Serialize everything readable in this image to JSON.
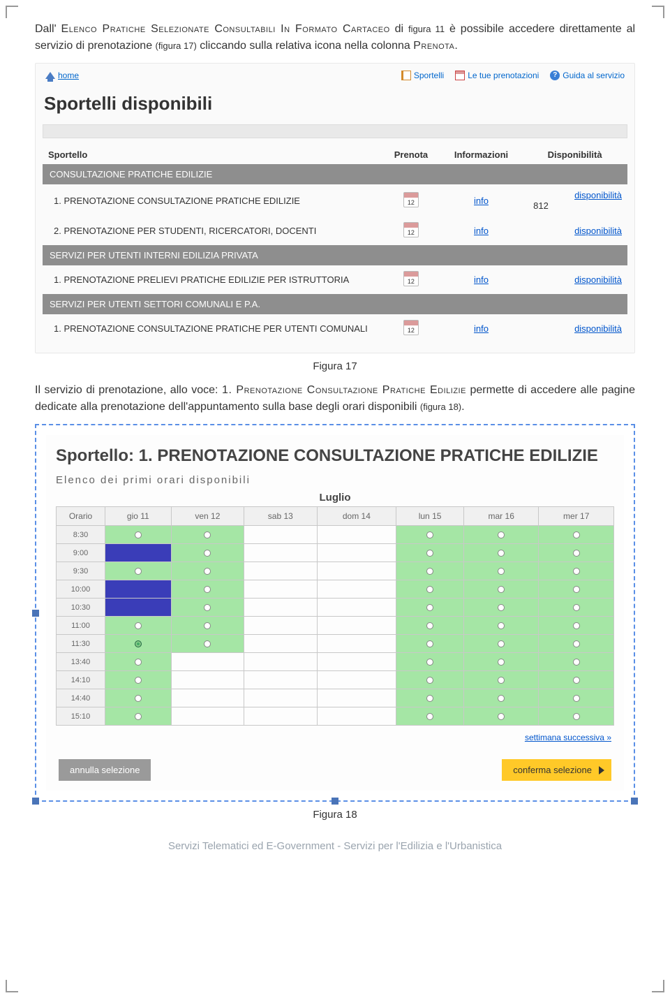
{
  "para1": {
    "pre": "Dall' ",
    "sc1": "Elenco Pratiche Selezionate Consultabili In Formato Cartaceo",
    "mid1": " di ",
    "f11": "figura 11",
    "mid2": " è possibile accedere direttamente al servizio di prenotazione ",
    "f17": "(figura 17)",
    "mid3": " cliccando sulla relativa icona nella colonna ",
    "sc2": "Prenota",
    "end": "."
  },
  "panel1": {
    "home": "home",
    "topLinks": [
      "Sportelli",
      "Le tue prenotazioni",
      "Guida al servizio"
    ],
    "title": "Sportelli disponibili",
    "headers": [
      "Sportello",
      "Prenota",
      "Informazioni",
      "Disponibilità"
    ],
    "sections": [
      {
        "name": "CONSULTAZIONE PRATICHE EDILIZIE",
        "rows": [
          {
            "label": "1. PRENOTAZIONE CONSULTAZIONE PRATICHE EDILIZIE",
            "info": "info",
            "dispo": "disponibilità",
            "extra": "812"
          },
          {
            "label": "2. PRENOTAZIONE PER STUDENTI, RICERCATORI, DOCENTI",
            "info": "info",
            "dispo": "disponibilità",
            "extra": ""
          }
        ]
      },
      {
        "name": "SERVIZI PER UTENTI INTERNI EDILIZIA PRIVATA",
        "rows": [
          {
            "label": "1. PRENOTAZIONE PRELIEVI PRATICHE EDILIZIE PER ISTRUTTORIA",
            "info": "info",
            "dispo": "disponibilità",
            "extra": ""
          }
        ]
      },
      {
        "name": "SERVIZI PER UTENTI SETTORI COMUNALI E P.A.",
        "rows": [
          {
            "label": "1. PRENOTAZIONE CONSULTAZIONE PRATICHE PER UTENTI COMUNALI",
            "info": "info",
            "dispo": "disponibilità",
            "extra": ""
          }
        ]
      }
    ]
  },
  "caption17": "Figura 17",
  "para2": {
    "pre": "Il servizio di prenotazione, allo voce: ",
    "sc": "1. Prenotazione Consultazione Pratiche Edilizie",
    "mid": " permette di accedere alle pagine dedicate alla prenotazione dell'appuntamento sulla base degli orari disponibili ",
    "f18": "(figura 18)",
    "end": "."
  },
  "panel2": {
    "title": "Sportello: 1. PRENOTAZIONE CONSULTAZIONE PRATICHE EDILIZIE",
    "subtitle": "Elenco dei primi orari disponibili",
    "month": "Luglio",
    "headers": [
      "Orario",
      "gio 11",
      "ven 12",
      "sab 13",
      "dom 14",
      "lun 15",
      "mar 16",
      "mer 17"
    ],
    "times": [
      "8:30",
      "9:00",
      "9:30",
      "10:00",
      "10:30",
      "11:00",
      "11:30",
      "13:40",
      "14:10",
      "14:40",
      "15:10"
    ],
    "grid": [
      [
        "a",
        "a",
        "",
        "",
        "a",
        "a",
        "a"
      ],
      [
        "b",
        "a",
        "",
        "",
        "a",
        "a",
        "a"
      ],
      [
        "a",
        "a",
        "",
        "",
        "a",
        "a",
        "a"
      ],
      [
        "b",
        "a",
        "",
        "",
        "a",
        "a",
        "a"
      ],
      [
        "b",
        "a",
        "",
        "",
        "a",
        "a",
        "a"
      ],
      [
        "a",
        "a",
        "",
        "",
        "a",
        "a",
        "a"
      ],
      [
        "s",
        "a",
        "",
        "",
        "a",
        "a",
        "a"
      ],
      [
        "a",
        "",
        "",
        "",
        "a",
        "a",
        "a"
      ],
      [
        "a",
        "",
        "",
        "",
        "a",
        "a",
        "a"
      ],
      [
        "a",
        "",
        "",
        "",
        "a",
        "a",
        "a"
      ],
      [
        "a",
        "",
        "",
        "",
        "a",
        "a",
        "a"
      ]
    ],
    "nextLink": "settimana successiva »",
    "btnCancel": "annulla selezione",
    "btnConfirm": "conferma selezione"
  },
  "caption18": "Figura 18",
  "footer": "Servizi Telematici ed E-Government - Servizi per l'Edilizia e l'Urbanistica",
  "colors": {
    "link": "#0055cc",
    "section_bg": "#8e8e8e",
    "avail": "#a5e6a5",
    "booked": "#3a3db8",
    "btn_confirm": "#ffc928",
    "dash_border": "#5a8fe6"
  }
}
